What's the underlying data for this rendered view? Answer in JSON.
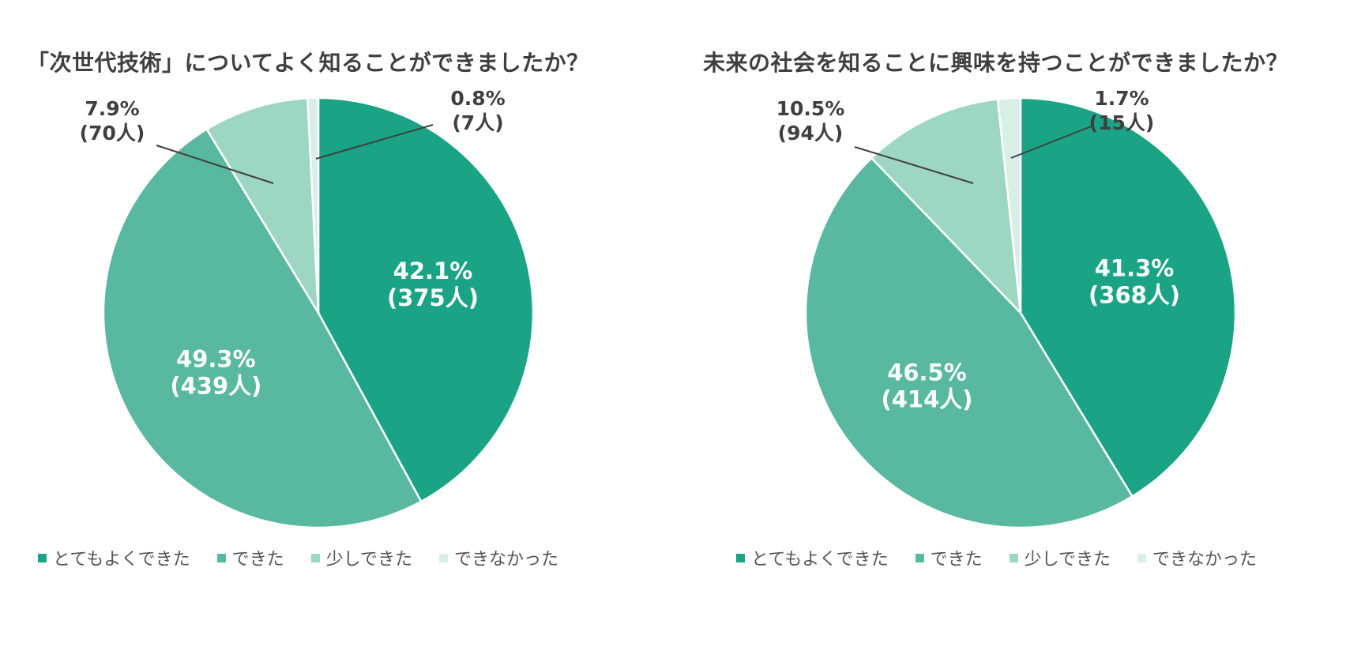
{
  "legend_labels": [
    "とてもよくできた",
    "できた",
    "少しできた",
    "できなかった"
  ],
  "colors": [
    "#1aa385",
    "#58b9a0",
    "#9dd6c3",
    "#d8efe8"
  ],
  "chart_data": [
    {
      "type": "pie",
      "title": "「次世代技術」についてよく知ることができましたか？",
      "categories": [
        "とてもよくできた",
        "できた",
        "少しできた",
        "できなかった"
      ],
      "values": [
        42.1,
        49.3,
        7.9,
        0.8
      ],
      "counts": [
        375,
        439,
        70,
        7
      ],
      "labels": [
        {
          "pct": "42.1%",
          "count": "(375人)"
        },
        {
          "pct": "49.3%",
          "count": "(439人)"
        },
        {
          "pct": "7.9%",
          "count": "(70人)"
        },
        {
          "pct": "0.8%",
          "count": "(7人)"
        }
      ],
      "legend": "bottom"
    },
    {
      "type": "pie",
      "title": "未来の社会を知ることに興味を持つことができましたか？",
      "categories": [
        "とてもよくできた",
        "できた",
        "少しできた",
        "できなかった"
      ],
      "values": [
        41.3,
        46.5,
        10.5,
        1.7
      ],
      "counts": [
        368,
        414,
        94,
        15
      ],
      "labels": [
        {
          "pct": "41.3%",
          "count": "(368人)"
        },
        {
          "pct": "46.5%",
          "count": "(414人)"
        },
        {
          "pct": "10.5%",
          "count": "(94人)"
        },
        {
          "pct": "1.7%",
          "count": "(15人)"
        }
      ],
      "legend": "bottom"
    }
  ]
}
